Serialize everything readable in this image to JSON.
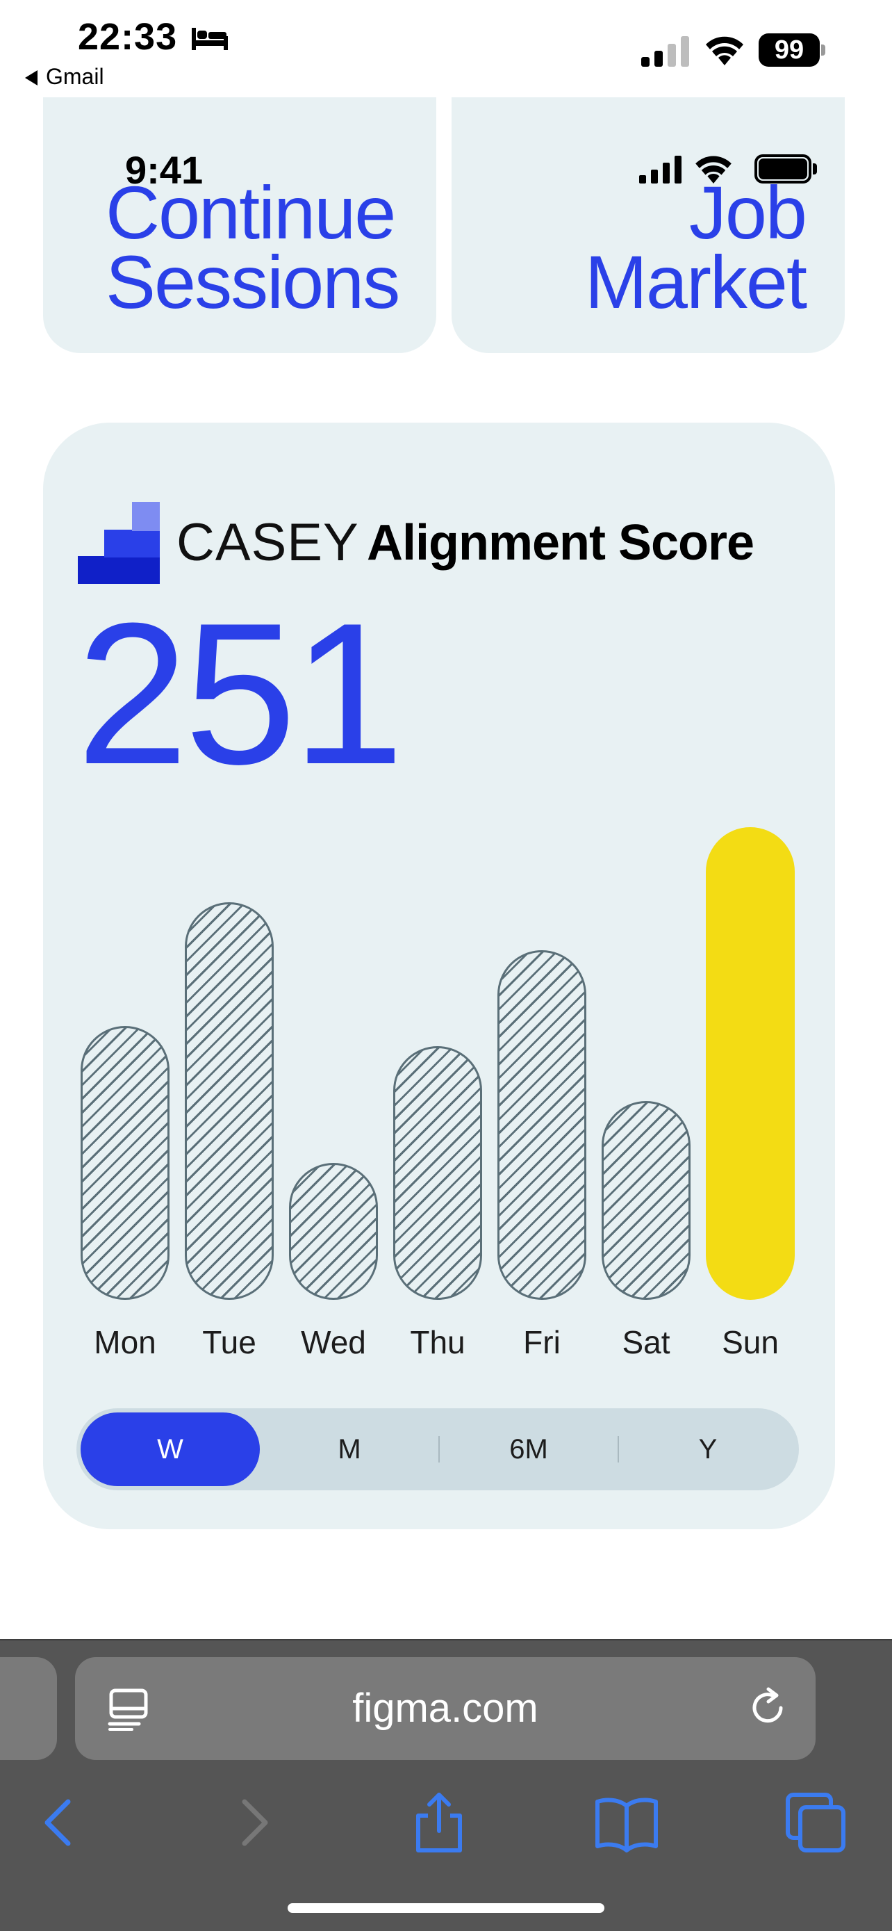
{
  "status_bar": {
    "time": "22:33",
    "back_app": "Gmail",
    "battery": "99",
    "icons": [
      "bed-icon",
      "cellular-signal-icon",
      "wifi-icon",
      "battery-icon"
    ]
  },
  "cards": {
    "left": {
      "inner_time": "9:41",
      "title_line1": "Continue",
      "title_line2": "Sessions"
    },
    "right": {
      "title_line1": "Job",
      "title_line2": "Market"
    }
  },
  "score_card": {
    "brand": "CASEY",
    "title": "Alignment Score",
    "score": "251",
    "range_options": [
      "W",
      "M",
      "6M",
      "Y"
    ],
    "selected_range": "W"
  },
  "chart_data": {
    "type": "bar",
    "categories": [
      "Mon",
      "Tue",
      "Wed",
      "Thu",
      "Fri",
      "Sat",
      "Sun"
    ],
    "values": [
      40,
      58,
      20,
      37,
      51,
      29,
      69
    ],
    "highlight": "Sun",
    "colors": {
      "highlight": "#f3dc14",
      "hatch": "#5a6f78"
    },
    "ylim": [
      0,
      70
    ]
  },
  "browser": {
    "url": "figma.com",
    "toolbar": [
      "back-icon",
      "forward-icon",
      "share-icon",
      "bookmarks-icon",
      "tabs-icon"
    ]
  },
  "colors": {
    "accent": "#2a40e8",
    "card_bg": "#e8f1f3",
    "segment_bg": "#cddce2",
    "browser_bar": "#555555",
    "toolbar_icon": "#3b7bf0"
  }
}
